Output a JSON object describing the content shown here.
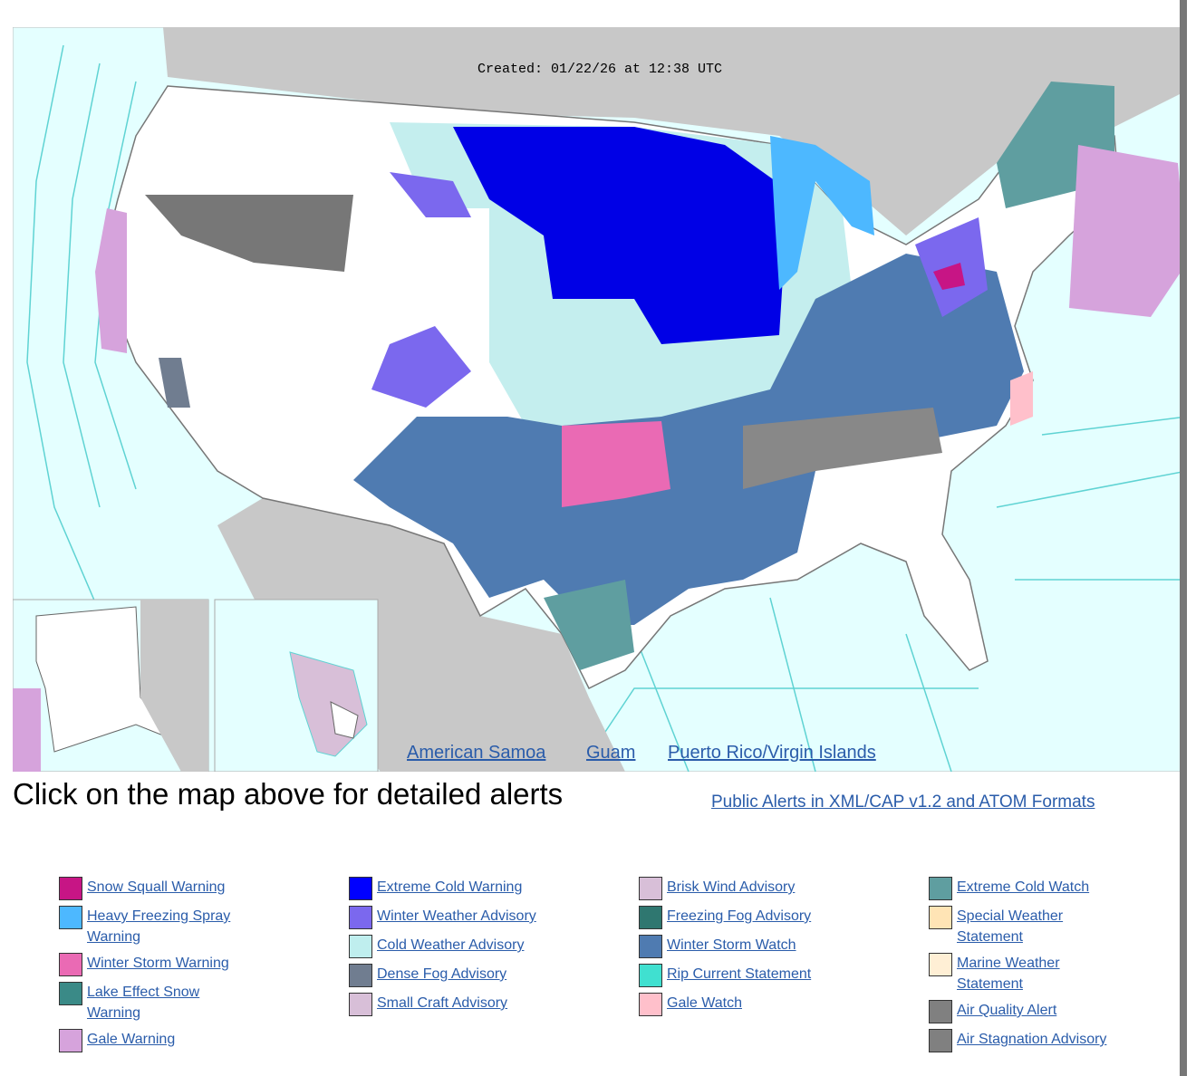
{
  "header": {
    "created": "Created: 01/22/26 at 12:38 UTC"
  },
  "map_links": [
    "American Samoa",
    "Guam",
    "Puerto Rico/Virgin Islands"
  ],
  "caption": "Click on the map above for detailed alerts",
  "feed_link": "Public Alerts in XML/CAP v1.2 and ATOM Formats",
  "legend": [
    [
      {
        "label": "Snow Squall Warning",
        "color": "#c71585"
      },
      {
        "label": "Heavy Freezing Spray Warning",
        "color": "#4db8ff"
      },
      {
        "label": "Winter Storm Warning",
        "color": "#ea6ab4"
      },
      {
        "label": "Lake Effect Snow Warning",
        "color": "#3a8a87"
      },
      {
        "label": "Gale Warning",
        "color": "#d6a3dc"
      }
    ],
    [
      {
        "label": "Extreme Cold Warning",
        "color": "#0000ff"
      },
      {
        "label": "Winter Weather Advisory",
        "color": "#7b68ee"
      },
      {
        "label": "Cold Weather Advisory",
        "color": "#bfeeee"
      },
      {
        "label": "Dense Fog Advisory",
        "color": "#707d90"
      },
      {
        "label": "Small Craft Advisory",
        "color": "#d8bfd8"
      }
    ],
    [
      {
        "label": "Brisk Wind Advisory",
        "color": "#d8bfd8"
      },
      {
        "label": "Freezing Fog Advisory",
        "color": "#2f7770"
      },
      {
        "label": "Winter Storm Watch",
        "color": "#4f7bb1"
      },
      {
        "label": "Rip Current Statement",
        "color": "#40e0d0"
      },
      {
        "label": "Gale Watch",
        "color": "#ffc0cb"
      }
    ],
    [
      {
        "label": "Extreme Cold Watch",
        "color": "#5f9ea0"
      },
      {
        "label": "Special Weather Statement",
        "color": "#ffe4b5"
      },
      {
        "label": "Marine Weather Statement",
        "color": "#ffefd5"
      },
      {
        "label": "Air Quality Alert",
        "color": "#808080"
      },
      {
        "label": "Air Stagnation Advisory",
        "color": "#808080"
      }
    ]
  ]
}
